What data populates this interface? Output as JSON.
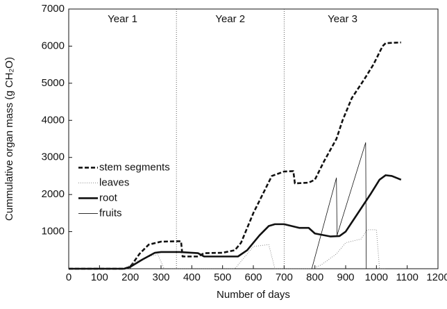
{
  "chart_data": {
    "type": "line",
    "xlabel": "Number of days",
    "ylabel": "Cummulative organ mass (g CH₂O)",
    "xlim": [
      0,
      1200
    ],
    "xticks": [
      0,
      100,
      200,
      300,
      400,
      500,
      600,
      700,
      800,
      900,
      1000,
      1100,
      1200
    ],
    "ylim": [
      0,
      7000
    ],
    "yticks": [
      1000,
      2000,
      3000,
      4000,
      5000,
      6000,
      7000
    ],
    "period_lines": [
      350,
      700
    ],
    "period_labels": [
      "Year 1",
      "Year 2",
      "Year 3"
    ],
    "legend": "left",
    "series": [
      {
        "name": "stem segments",
        "color": "#111",
        "style": "dashed",
        "x": [
          0,
          180,
          200,
          230,
          260,
          300,
          350,
          365,
          370,
          420,
          440,
          500,
          540,
          560,
          600,
          630,
          660,
          700,
          730,
          735,
          780,
          800,
          830,
          870,
          890,
          920,
          960,
          990,
          1020,
          1030,
          1080
        ],
        "values": [
          0,
          0,
          50,
          400,
          650,
          730,
          740,
          740,
          330,
          330,
          420,
          430,
          500,
          700,
          1500,
          2000,
          2500,
          2620,
          2630,
          2300,
          2320,
          2400,
          2900,
          3500,
          4000,
          4600,
          5100,
          5500,
          6000,
          6080,
          6100
        ]
      },
      {
        "name": "leaves",
        "color": "#888",
        "style": "dotted",
        "x": [
          0,
          180,
          220,
          270,
          290,
          310,
          540,
          600,
          650,
          670,
          790,
          820,
          870,
          900,
          950,
          970,
          1000,
          1010,
          1030
        ],
        "values": [
          0,
          0,
          200,
          350,
          380,
          0,
          0,
          600,
          650,
          0,
          0,
          100,
          400,
          700,
          800,
          1050,
          1050,
          0,
          0
        ]
      },
      {
        "name": "root",
        "color": "#111",
        "style": "thick",
        "x": [
          0,
          180,
          200,
          240,
          280,
          300,
          360,
          420,
          440,
          550,
          580,
          620,
          650,
          670,
          700,
          750,
          780,
          800,
          850,
          880,
          900,
          940,
          980,
          1010,
          1030,
          1050,
          1080
        ],
        "values": [
          0,
          0,
          50,
          250,
          430,
          450,
          450,
          420,
          330,
          330,
          500,
          900,
          1150,
          1200,
          1200,
          1100,
          1100,
          950,
          870,
          880,
          1000,
          1500,
          2000,
          2400,
          2520,
          2500,
          2400
        ]
      },
      {
        "name": "fruits",
        "color": "#111",
        "style": "thin",
        "x": [
          0,
          790,
          870,
          872,
          965,
          967,
          1080
        ],
        "values": [
          0,
          0,
          2450,
          900,
          3400,
          0,
          0
        ]
      }
    ]
  }
}
